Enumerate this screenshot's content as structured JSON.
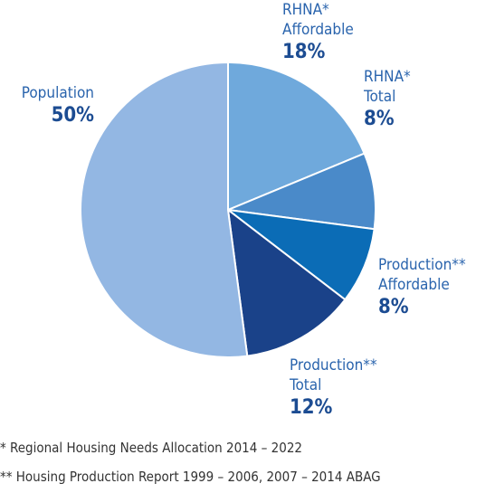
{
  "chart_data": {
    "type": "pie",
    "categories": [
      "RHNA* Affordable",
      "RHNA* Total",
      "Production** Affordable",
      "Production** Total",
      "Population"
    ],
    "values": [
      18,
      8,
      8,
      12,
      50
    ],
    "value_labels": [
      "18%",
      "8%",
      "8%",
      "12%",
      "50%"
    ],
    "colors": [
      "#6fa9dc",
      "#4a8ac9",
      "#0b6cb6",
      "#1a4289",
      "#93b7e3"
    ],
    "footnotes": [
      "* Regional Housing Needs Allocation 2014 – 2022",
      "** Housing Production Report 1999 – 2006, 2007 – 2014 ABAG"
    ]
  }
}
